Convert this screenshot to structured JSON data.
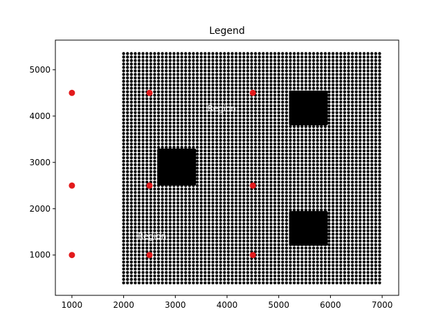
{
  "chart_data": {
    "type": "scatter",
    "title": "Legend",
    "xlabel": "",
    "ylabel": "",
    "xlim": [
      680,
      7320
    ],
    "ylim": [
      130,
      5640
    ],
    "xticks": [
      1000,
      2000,
      3000,
      4000,
      5000,
      6000,
      7000
    ],
    "yticks": [
      1000,
      2000,
      3000,
      4000,
      5000
    ],
    "grid": false,
    "colors": {
      "background_points": "#000000",
      "sensor_points": "#e31a1c",
      "axes": "#000000"
    },
    "background_points": {
      "x_range": [
        2000,
        7000
      ],
      "y_range": [
        400,
        5400
      ],
      "spacing": 75,
      "marker": "small black dots forming a dense lattice"
    },
    "dense_blocks": [
      {
        "x": [
          2650,
          3400
        ],
        "y": [
          2500,
          3300
        ]
      },
      {
        "x": [
          5200,
          5950
        ],
        "y": [
          3800,
          4550
        ]
      },
      {
        "x": [
          5200,
          5950
        ],
        "y": [
          1200,
          1950
        ]
      }
    ],
    "series": [
      {
        "values": [
          {
            "x": 1000,
            "y": 4500
          },
          {
            "x": 2500,
            "y": 4500
          },
          {
            "x": 4500,
            "y": 4500
          },
          {
            "x": 1000,
            "y": 2500
          },
          {
            "x": 2500,
            "y": 2500
          },
          {
            "x": 4500,
            "y": 2500
          },
          {
            "x": 1000,
            "y": 1000
          },
          {
            "x": 2500,
            "y": 1000
          },
          {
            "x": 4500,
            "y": 1000
          }
        ]
      }
    ],
    "annotations": [
      {
        "text": "Region",
        "x": 3900,
        "y": 4100
      },
      {
        "text": "Region",
        "x": 2550,
        "y": 1350
      }
    ]
  }
}
